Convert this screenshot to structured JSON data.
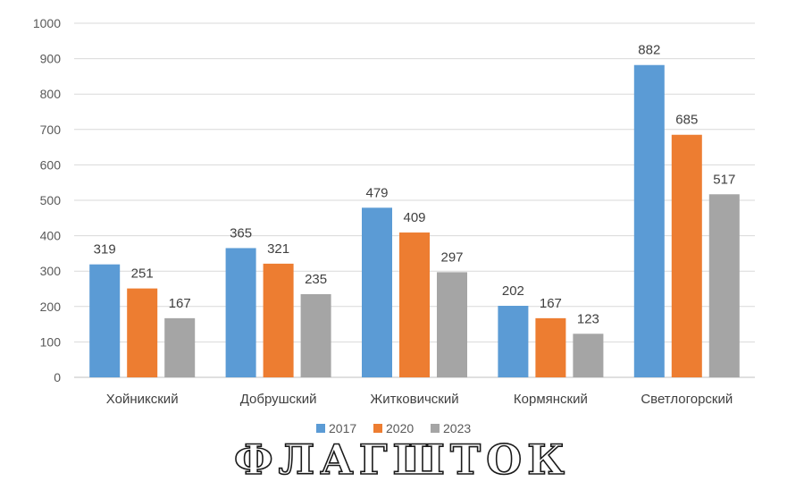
{
  "chart_data": {
    "type": "bar",
    "categories": [
      "Хойникский",
      "Добрушский",
      "Житковичский",
      "Кормянский",
      "Светлогорский"
    ],
    "series": [
      {
        "name": "2017",
        "color": "#5B9BD5",
        "values": [
          319,
          365,
          479,
          202,
          882
        ]
      },
      {
        "name": "2020",
        "color": "#ED7D31",
        "values": [
          251,
          321,
          409,
          167,
          685
        ]
      },
      {
        "name": "2023",
        "color": "#A5A5A5",
        "values": [
          167,
          235,
          297,
          123,
          517
        ]
      }
    ],
    "ylim": [
      0,
      1000
    ],
    "yticks": [
      0,
      100,
      200,
      300,
      400,
      500,
      600,
      700,
      800,
      900,
      1000
    ],
    "grid": true,
    "legend_position": "bottom",
    "title": "",
    "xlabel": "",
    "ylabel": ""
  },
  "watermark": {
    "text": "ФЛАГШТОК"
  }
}
